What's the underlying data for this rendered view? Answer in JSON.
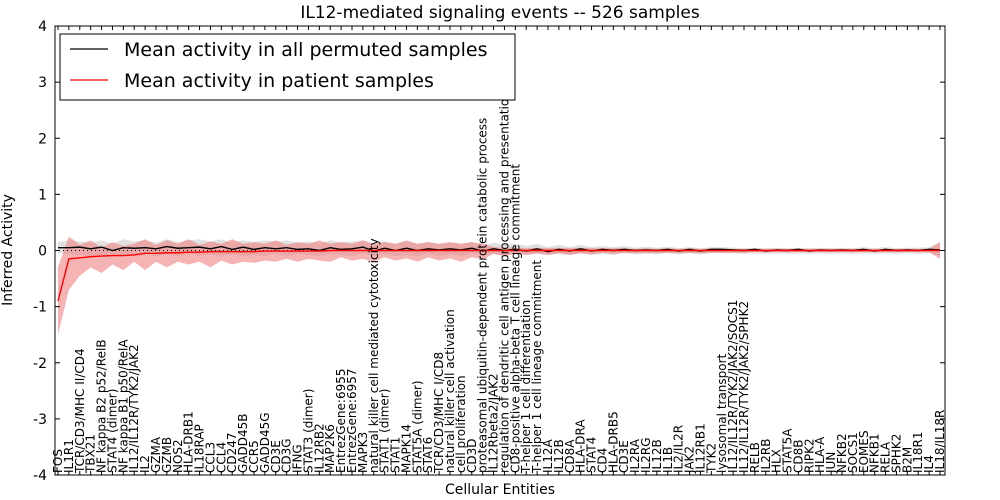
{
  "chart_data": {
    "type": "line",
    "title": "IL12-mediated signaling events -- 526 samples",
    "xlabel": "Cellular Entities",
    "ylabel": "Inferred Activity",
    "ylim": [
      -4,
      4
    ],
    "yticks": [
      -4,
      -3,
      -2,
      -1,
      0,
      1,
      2,
      3,
      4
    ],
    "legend_position": "upper-left",
    "categories": [
      "FOS",
      "IL1R1",
      "TCR/CD3/MHC II/CD4",
      "TBX21",
      "NF kappa B2 p52/RelB",
      "STAT4 (dimer)",
      "NF kappa B1 p50/RelA",
      "IL12/IL12R/TYK2/JAK2",
      "IL2",
      "GZMA",
      "GZMB",
      "NOS2",
      "HLA-DRB1",
      "IL18RAP",
      "CCL3",
      "CCL4",
      "CD247",
      "GADD45B",
      "CCR5",
      "GADD45G",
      "CD3E",
      "CD3G",
      "IFNG",
      "STAT3 (dimer)",
      "IL12RB2",
      "MAP2K6",
      "EntrezGene:6955",
      "EntrezGene:6957",
      "MAPK3",
      "natural killer cell mediated cytotoxicity",
      "STAT1 (dimer)",
      "STAT1",
      "MAPK14",
      "STAT5A (dimer)",
      "STAT6",
      "TCR/CD3/MHC I/CD8",
      "natural killer cell activation",
      "cell proliferation",
      "CD3D",
      "proteasomal ubiquitin-dependent protein catabolic process",
      "IL12Rbeta2/JAK2",
      "regulation of dendritic cell antigen processing and presentation",
      "CD8-positive alpha-beta T cell lineage commitment",
      "T-helper 1 cell differentiation",
      "T-helper 1 cell lineage commitment",
      "IL12A",
      "IL12B",
      "CD8A",
      "HLA-DRA",
      "STAT4",
      "CD4",
      "HLA-DRB5",
      "CD3E",
      "IL2RA",
      "IL2RG",
      "IL12B",
      "IL1B",
      "IL2/IL2R",
      "JAK2",
      "IL12RB1",
      "TYK2",
      "lysosomal transport",
      "IL12/IL12R/TYK2/JAK2/SOCS1",
      "IL12/IL12R/TYK2/JAK2/SPHK2",
      "RELB",
      "IL2RB",
      "HLX",
      "STAT5A",
      "CD8B",
      "RIPK2",
      "HLA-A",
      "JUN",
      "NFKB2",
      "SOCS1",
      "EOMES",
      "NFKB1",
      "RELA",
      "SPHK2",
      "B2M",
      "IL18R1",
      "IL4",
      "IL18/IL18R"
    ],
    "series": [
      {
        "name": "Mean activity in all permuted samples",
        "color": "#000000",
        "values": [
          0.05,
          0.05,
          0.06,
          0.03,
          0.06,
          0.0,
          0.05,
          0.04,
          0.05,
          0.03,
          0.07,
          0.04,
          0.05,
          0.06,
          0.03,
          0.07,
          0.02,
          0.06,
          0.02,
          0.05,
          0.03,
          0.05,
          0.02,
          0.03,
          0.0,
          0.05,
          0.02,
          0.03,
          0.06,
          -0.01,
          0.04,
          0.0,
          0.04,
          0.0,
          0.03,
          0.01,
          0.03,
          0.01,
          0.04,
          -0.01,
          0.03,
          0.0,
          0.02,
          -0.01,
          0.03,
          -0.02,
          0.02,
          -0.01,
          0.03,
          -0.01,
          0.02,
          0.0,
          0.02,
          0.0,
          0.01,
          0.0,
          0.02,
          -0.01,
          0.02,
          -0.01,
          0.02,
          0.02,
          0.01,
          0.0,
          0.02,
          -0.01,
          0.01,
          0.0,
          0.02,
          -0.01,
          0.01,
          0.0,
          0.01,
          0.0,
          0.02,
          -0.01,
          0.02,
          0.0,
          0.01,
          0.0,
          0.02,
          0.01
        ]
      },
      {
        "name": "Mean activity in patient samples",
        "color": "#ff0000",
        "values": [
          -0.9,
          -0.15,
          -0.13,
          -0.11,
          -0.1,
          -0.09,
          -0.09,
          -0.08,
          -0.05,
          -0.05,
          -0.04,
          -0.04,
          -0.03,
          -0.03,
          -0.02,
          -0.02,
          -0.02,
          -0.02,
          -0.02,
          -0.01,
          -0.01,
          -0.01,
          -0.01,
          -0.01,
          -0.01,
          0.0,
          0.0,
          0.0,
          0.0,
          0.0,
          0.0,
          0.0,
          0.0,
          0.0,
          0.0,
          0.0,
          0.0,
          0.0,
          0.0,
          0.0,
          0.0,
          0.0,
          0.0,
          0.0,
          0.0,
          0.0,
          0.0,
          0.0,
          0.0,
          0.0,
          0.0,
          0.0,
          0.0,
          0.0,
          0.0,
          0.0,
          0.0,
          0.0,
          0.0,
          0.0,
          0.0,
          0.0,
          0.0,
          0.0,
          0.0,
          0.0,
          0.0,
          0.0,
          0.0,
          0.0,
          0.0,
          0.0,
          0.0,
          0.0,
          0.0,
          0.0,
          0.0,
          0.0,
          0.0,
          0.0,
          0.0,
          0.0
        ]
      }
    ],
    "bands": [
      {
        "name": "permuted samples spread",
        "color": "#bbbbbb",
        "lower": [
          -0.05,
          -0.06,
          -0.08,
          -0.1,
          -0.08,
          -0.1,
          -0.1,
          -0.08,
          -0.06,
          -0.1,
          -0.06,
          -0.1,
          -0.05,
          -0.1,
          -0.07,
          -0.1,
          -0.06,
          -0.1,
          -0.08,
          -0.1,
          -0.05,
          -0.1,
          -0.06,
          -0.08,
          -0.1,
          -0.06,
          -0.08,
          -0.1,
          -0.05,
          -0.1,
          -0.06,
          -0.1,
          -0.08,
          -0.1,
          -0.05,
          -0.1,
          -0.06,
          -0.1,
          -0.05,
          -0.08,
          -0.06,
          -0.1,
          -0.06,
          -0.08,
          -0.06,
          -0.08,
          -0.06,
          -0.08,
          -0.05,
          -0.08,
          -0.06,
          -0.08,
          -0.05,
          -0.07,
          -0.06,
          -0.07,
          -0.05,
          -0.07,
          -0.05,
          -0.07,
          -0.05,
          -0.05,
          -0.05,
          -0.06,
          -0.05,
          -0.06,
          -0.05,
          -0.06,
          -0.05,
          -0.06,
          -0.05,
          -0.06,
          -0.05,
          -0.06,
          -0.05,
          -0.06,
          -0.05,
          -0.06,
          -0.05,
          -0.06,
          -0.05,
          -0.1
        ],
        "upper": [
          0.15,
          0.18,
          0.16,
          0.14,
          0.18,
          0.12,
          0.2,
          0.16,
          0.18,
          0.14,
          0.2,
          0.15,
          0.18,
          0.2,
          0.16,
          0.2,
          0.14,
          0.18,
          0.15,
          0.18,
          0.16,
          0.18,
          0.14,
          0.16,
          0.12,
          0.18,
          0.15,
          0.16,
          0.18,
          0.1,
          0.16,
          0.12,
          0.16,
          0.12,
          0.15,
          0.12,
          0.14,
          0.12,
          0.15,
          0.08,
          0.14,
          0.1,
          0.12,
          0.08,
          0.12,
          0.06,
          0.1,
          0.06,
          0.1,
          0.06,
          0.08,
          0.06,
          0.08,
          0.05,
          0.07,
          0.05,
          0.07,
          0.04,
          0.06,
          0.04,
          0.06,
          0.06,
          0.05,
          0.04,
          0.05,
          0.04,
          0.05,
          0.04,
          0.05,
          0.04,
          0.05,
          0.04,
          0.05,
          0.04,
          0.06,
          0.04,
          0.06,
          0.04,
          0.05,
          0.05,
          0.06,
          0.15
        ]
      },
      {
        "name": "patient samples spread",
        "color": "#f08080",
        "lower": [
          -1.5,
          -0.7,
          -0.45,
          -0.3,
          -0.4,
          -0.25,
          -0.35,
          -0.2,
          -0.35,
          -0.2,
          -0.3,
          -0.2,
          -0.25,
          -0.2,
          -0.3,
          -0.18,
          -0.25,
          -0.2,
          -0.22,
          -0.18,
          -0.2,
          -0.15,
          -0.2,
          -0.15,
          -0.18,
          -0.2,
          -0.12,
          -0.18,
          -0.15,
          -0.2,
          -0.12,
          -0.18,
          -0.14,
          -0.2,
          -0.12,
          -0.18,
          -0.14,
          -0.2,
          -0.12,
          -0.16,
          -0.06,
          -0.1,
          -0.05,
          -0.08,
          -0.05,
          -0.08,
          -0.05,
          -0.08,
          -0.05,
          -0.07,
          -0.04,
          -0.06,
          -0.04,
          -0.05,
          -0.04,
          -0.05,
          -0.04,
          -0.05,
          -0.04,
          -0.05,
          -0.04,
          -0.04,
          -0.04,
          -0.04,
          -0.03,
          -0.03,
          -0.03,
          -0.03,
          -0.03,
          -0.03,
          -0.03,
          -0.03,
          -0.03,
          -0.03,
          -0.03,
          -0.03,
          -0.03,
          -0.03,
          -0.03,
          -0.03,
          -0.03,
          -0.15
        ],
        "upper": [
          -0.3,
          0.25,
          0.1,
          0.18,
          0.05,
          0.15,
          0.08,
          0.12,
          0.2,
          0.1,
          0.18,
          0.12,
          0.2,
          0.1,
          0.16,
          0.12,
          0.2,
          0.12,
          0.15,
          0.12,
          0.18,
          0.1,
          0.15,
          0.12,
          0.18,
          0.12,
          0.15,
          0.12,
          0.18,
          0.12,
          0.15,
          0.12,
          0.18,
          0.12,
          0.15,
          0.12,
          0.15,
          0.12,
          0.15,
          0.12,
          0.06,
          0.05,
          0.05,
          0.04,
          0.05,
          0.04,
          0.05,
          0.04,
          0.05,
          0.04,
          0.04,
          0.04,
          0.04,
          0.03,
          0.04,
          0.03,
          0.04,
          0.03,
          0.04,
          0.03,
          0.04,
          0.03,
          0.03,
          0.03,
          0.03,
          0.03,
          0.03,
          0.03,
          0.03,
          0.03,
          0.03,
          0.03,
          0.03,
          0.03,
          0.03,
          0.03,
          0.03,
          0.03,
          0.03,
          0.03,
          0.03,
          0.15
        ]
      }
    ]
  }
}
